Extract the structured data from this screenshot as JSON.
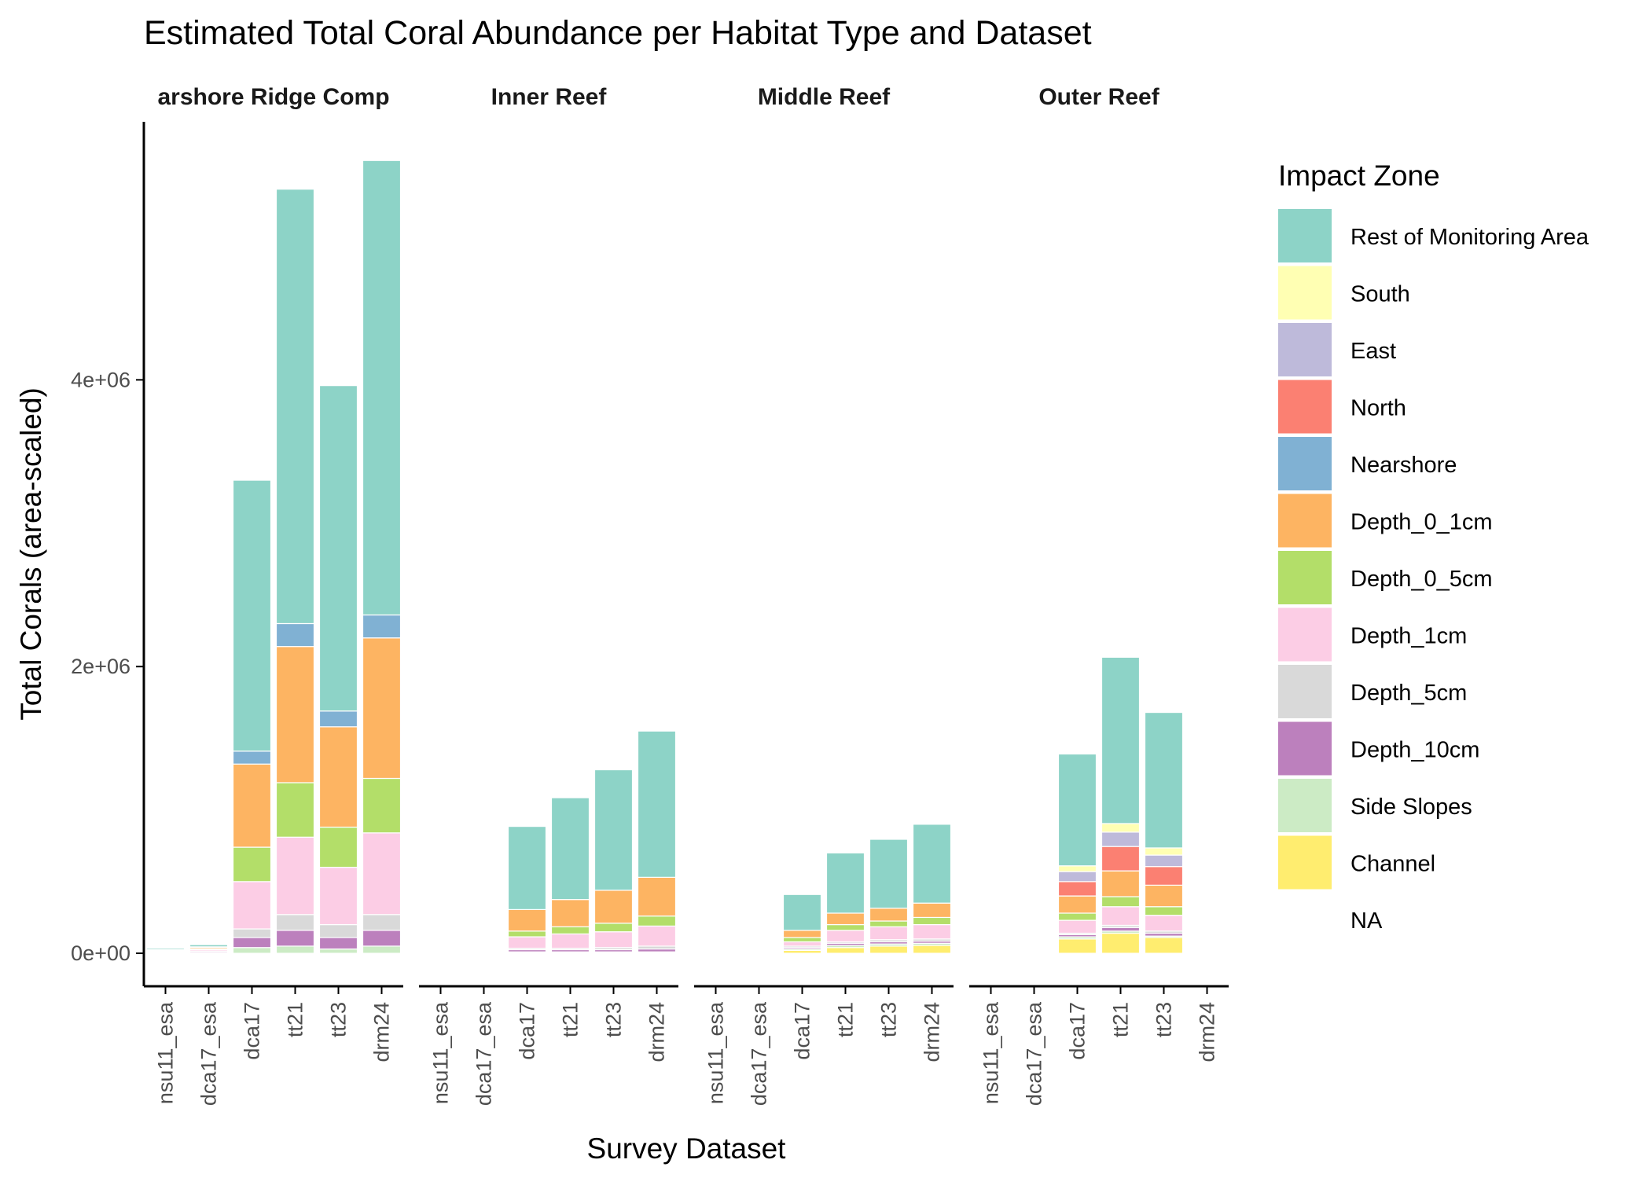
{
  "chart_data": {
    "type": "bar",
    "stacked": true,
    "title": "Estimated Total Coral Abundance per Habitat Type and Dataset",
    "xlabel": "Survey Dataset",
    "ylabel": "Total Corals (area-scaled)",
    "ylim": [
      -230000,
      5800000
    ],
    "y_ticks": [
      0,
      2000000,
      4000000
    ],
    "y_tick_labels": [
      "0e+00",
      "2e+06",
      "4e+06"
    ],
    "grid": false,
    "categories": [
      "nsu11_esa",
      "dca17_esa",
      "dca17",
      "tt21",
      "tt23",
      "drm24"
    ],
    "legend": {
      "title": "Impact Zone",
      "position": "right",
      "entries": [
        "Rest of Monitoring Area",
        "South",
        "East",
        "North",
        "Nearshore",
        "Depth_0_1cm",
        "Depth_0_5cm",
        "Depth_1cm",
        "Depth_5cm",
        "Depth_10cm",
        "Side Slopes",
        "Channel",
        "NA"
      ]
    },
    "colors": {
      "Rest of Monitoring Area": "#8DD3C7",
      "South": "#FFFFB3",
      "East": "#BEBADA",
      "North": "#FB8072",
      "Nearshore": "#80B1D3",
      "Depth_0_1cm": "#FDB462",
      "Depth_0_5cm": "#B3DE69",
      "Depth_1cm": "#FCCDE5",
      "Depth_5cm": "#D9D9D9",
      "Depth_10cm": "#BC80BD",
      "Side Slopes": "#CCEBC5",
      "Channel": "#FFED6F",
      "NA": "#FFFFFF"
    },
    "stack_order": [
      "Channel",
      "Side Slopes",
      "Depth_10cm",
      "Depth_5cm",
      "Depth_1cm",
      "Depth_0_5cm",
      "Depth_0_1cm",
      "Nearshore",
      "North",
      "East",
      "South",
      "Rest of Monitoring Area"
    ],
    "panels": [
      {
        "name": "arshore Ridge Comp",
        "bars": {
          "nsu11_esa": {
            "Channel": 0,
            "Side Slopes": 2000,
            "Depth_10cm": 5000,
            "Depth_5cm": 3000,
            "Depth_1cm": 5000,
            "Depth_0_5cm": 3000,
            "Depth_0_1cm": 5000,
            "Nearshore": 3000,
            "Rest of Monitoring Area": 10000
          },
          "dca17_esa": {
            "Channel": 0,
            "Side Slopes": 4000,
            "Depth_10cm": 8000,
            "Depth_5cm": 4000,
            "Depth_1cm": 10000,
            "Depth_0_5cm": 4000,
            "Depth_0_1cm": 10000,
            "Nearshore": 5000,
            "Rest of Monitoring Area": 15000
          },
          "dca17": {
            "Channel": 0,
            "Side Slopes": 40000,
            "Depth_10cm": 70000,
            "Depth_5cm": 60000,
            "Depth_1cm": 330000,
            "Depth_0_5cm": 240000,
            "Depth_0_1cm": 580000,
            "Nearshore": 90000,
            "Rest of Monitoring Area": 1890000
          },
          "tt21": {
            "Channel": 0,
            "Side Slopes": 50000,
            "Depth_10cm": 110000,
            "Depth_5cm": 110000,
            "Depth_1cm": 540000,
            "Depth_0_5cm": 380000,
            "Depth_0_1cm": 950000,
            "Nearshore": 160000,
            "Rest of Monitoring Area": 3030000
          },
          "tt23": {
            "Channel": 0,
            "Side Slopes": 30000,
            "Depth_10cm": 80000,
            "Depth_5cm": 90000,
            "Depth_1cm": 400000,
            "Depth_0_5cm": 280000,
            "Depth_0_1cm": 700000,
            "Nearshore": 110000,
            "Rest of Monitoring Area": 2270000
          },
          "drm24": {
            "Channel": 0,
            "Side Slopes": 50000,
            "Depth_10cm": 110000,
            "Depth_5cm": 110000,
            "Depth_1cm": 570000,
            "Depth_0_5cm": 380000,
            "Depth_0_1cm": 980000,
            "Nearshore": 160000,
            "Rest of Monitoring Area": 3170000
          }
        }
      },
      {
        "name": "Inner Reef",
        "bars": {
          "nsu11_esa": {
            "Rest of Monitoring Area": 4000
          },
          "dca17_esa": {
            "Rest of Monitoring Area": 2000
          },
          "dca17": {
            "Channel": 5000,
            "Side Slopes": 5000,
            "Depth_10cm": 15000,
            "Depth_5cm": 10000,
            "Depth_1cm": 80000,
            "Depth_0_5cm": 40000,
            "Depth_0_1cm": 150000,
            "Rest of Monitoring Area": 580000
          },
          "tt21": {
            "Channel": 5000,
            "Side Slopes": 5000,
            "Depth_10cm": 15000,
            "Depth_5cm": 10000,
            "Depth_1cm": 100000,
            "Depth_0_5cm": 50000,
            "Depth_0_1cm": 190000,
            "Rest of Monitoring Area": 710000
          },
          "tt23": {
            "Channel": 5000,
            "Side Slopes": 5000,
            "Depth_10cm": 15000,
            "Depth_5cm": 15000,
            "Depth_1cm": 110000,
            "Depth_0_5cm": 60000,
            "Depth_0_1cm": 230000,
            "Rest of Monitoring Area": 840000
          },
          "drm24": {
            "Channel": 5000,
            "Side Slopes": 5000,
            "Depth_10cm": 20000,
            "Depth_5cm": 20000,
            "Depth_1cm": 140000,
            "Depth_0_5cm": 70000,
            "Depth_0_1cm": 270000,
            "Rest of Monitoring Area": 1020000
          }
        }
      },
      {
        "name": "Middle Reef",
        "bars": {
          "nsu11_esa": {
            "Rest of Monitoring Area": 4000
          },
          "dca17_esa": {
            "Rest of Monitoring Area": 1000
          },
          "dca17": {
            "Channel": 20000,
            "Side Slopes": 10000,
            "Depth_10cm": 10000,
            "Depth_5cm": 10000,
            "Depth_1cm": 30000,
            "Depth_0_5cm": 30000,
            "Depth_0_1cm": 50000,
            "Rest of Monitoring Area": 250000
          },
          "tt21": {
            "Channel": 40000,
            "Side Slopes": 15000,
            "Depth_10cm": 15000,
            "Depth_5cm": 10000,
            "Depth_1cm": 80000,
            "Depth_0_5cm": 40000,
            "Depth_0_1cm": 80000,
            "Rest of Monitoring Area": 420000
          },
          "tt23": {
            "Channel": 50000,
            "Side Slopes": 15000,
            "Depth_10cm": 15000,
            "Depth_5cm": 15000,
            "Depth_1cm": 90000,
            "Depth_0_5cm": 40000,
            "Depth_0_1cm": 90000,
            "Rest of Monitoring Area": 480000
          },
          "drm24": {
            "Channel": 55000,
            "Side Slopes": 15000,
            "Depth_10cm": 15000,
            "Depth_5cm": 15000,
            "Depth_1cm": 100000,
            "Depth_0_5cm": 50000,
            "Depth_0_1cm": 100000,
            "Rest of Monitoring Area": 550000
          }
        }
      },
      {
        "name": "Outer Reef",
        "bars": {
          "nsu11_esa": {
            "Rest of Monitoring Area": 4000
          },
          "dca17_esa": {
            "Rest of Monitoring Area": 1000
          },
          "dca17": {
            "Channel": 100000,
            "Side Slopes": 15000,
            "Depth_10cm": 15000,
            "Depth_5cm": 10000,
            "Depth_1cm": 90000,
            "Depth_0_5cm": 50000,
            "Depth_0_1cm": 120000,
            "North": 100000,
            "East": 70000,
            "South": 40000,
            "Rest of Monitoring Area": 780000
          },
          "tt21": {
            "Channel": 140000,
            "Side Slopes": 15000,
            "Depth_10cm": 25000,
            "Depth_5cm": 15000,
            "Depth_1cm": 130000,
            "Depth_0_5cm": 70000,
            "Depth_0_1cm": 180000,
            "North": 170000,
            "East": 100000,
            "South": 60000,
            "Rest of Monitoring Area": 1160000
          },
          "tt23": {
            "Channel": 110000,
            "Side Slopes": 10000,
            "Depth_10cm": 20000,
            "Depth_5cm": 15000,
            "Depth_1cm": 110000,
            "Depth_0_5cm": 60000,
            "Depth_0_1cm": 150000,
            "North": 130000,
            "East": 80000,
            "South": 50000,
            "Rest of Monitoring Area": 945000
          },
          "drm24": {}
        }
      }
    ]
  }
}
